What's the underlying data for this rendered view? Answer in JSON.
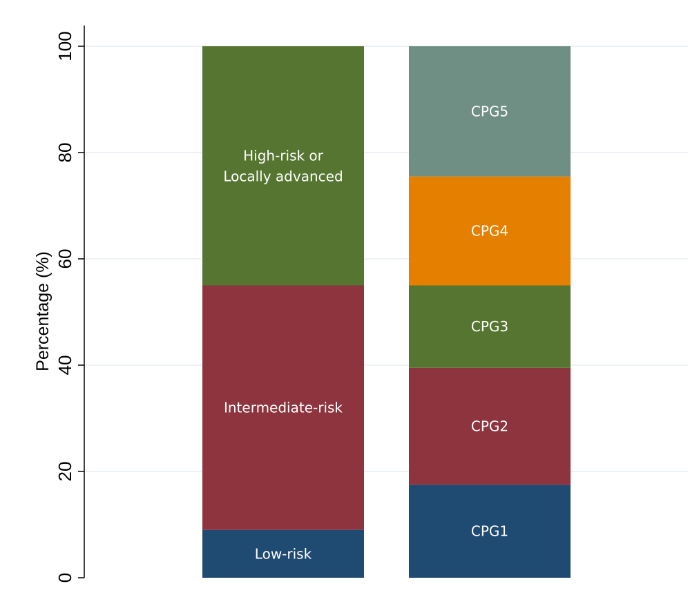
{
  "chart_data": {
    "type": "bar",
    "stacked": true,
    "title": "",
    "xlabel": "",
    "ylabel": "Percentage (%)",
    "ylim": [
      0,
      100
    ],
    "yticks": [
      0,
      20,
      40,
      60,
      80,
      100
    ],
    "grid": true,
    "legend": "none",
    "bars": [
      {
        "segments": [
          {
            "label": "Low-risk",
            "value": 9,
            "color": "#1f4a72"
          },
          {
            "label": "Intermediate-risk",
            "value": 46,
            "color": "#8e343e"
          },
          {
            "label": [
              "High-risk or",
              "Locally advanced"
            ],
            "value": 45,
            "color": "#567530"
          }
        ]
      },
      {
        "segments": [
          {
            "label": "CPG1",
            "value": 17.5,
            "color": "#1f4a72"
          },
          {
            "label": "CPG2",
            "value": 22,
            "color": "#8e343e"
          },
          {
            "label": "CPG3",
            "value": 15.5,
            "color": "#567530"
          },
          {
            "label": "CPG4",
            "value": 20.5,
            "color": "#e57f00"
          },
          {
            "label": "CPG5",
            "value": 24.5,
            "color": "#6f8e84"
          }
        ]
      }
    ]
  }
}
